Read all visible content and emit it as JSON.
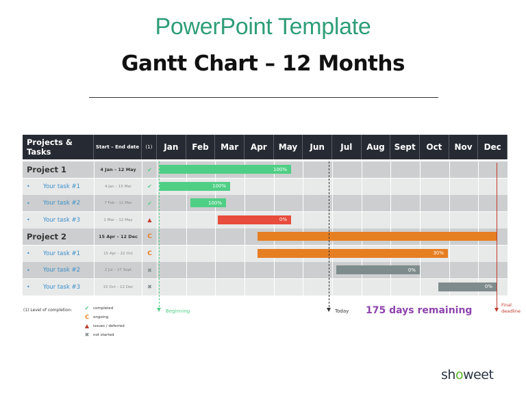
{
  "header": {
    "subtitle": "PowerPoint Template",
    "title": "Gantt Chart – 12 Months"
  },
  "table": {
    "col_task": "Projects & Tasks",
    "col_date": "Start – End date",
    "col_status": "(1)",
    "months": [
      "Jan",
      "Feb",
      "Mar",
      "Apr",
      "May",
      "Jun",
      "Jul",
      "Aug",
      "Sept",
      "Oct",
      "Nov",
      "Dec"
    ],
    "rows": [
      {
        "type": "project",
        "name": "Project 1",
        "dates": "4 Jan – 12 May",
        "status": "completed",
        "status_glyph": "✔",
        "pct": "100%"
      },
      {
        "type": "task",
        "name": "Your task #1",
        "dates": "4 Jan – 15 Mar",
        "status": "completed",
        "status_glyph": "✔",
        "pct": "100%"
      },
      {
        "type": "task",
        "name": "Your task #2",
        "dates": "7 Feb – 11 Mar",
        "status": "completed",
        "status_glyph": "✔",
        "pct": "100%"
      },
      {
        "type": "task",
        "name": "Your task #3",
        "dates": "1 Mar – 12 May",
        "status": "issues / deferred",
        "status_glyph": "▲",
        "pct": "0%"
      },
      {
        "type": "project",
        "name": "Project 2",
        "dates": "15 Apr – 12 Dec",
        "status": "ongoing",
        "status_glyph": "C",
        "pct": ""
      },
      {
        "type": "task",
        "name": "Your task #1",
        "dates": "15 Apr – 22 Oct",
        "status": "ongoing",
        "status_glyph": "C",
        "pct": "30%"
      },
      {
        "type": "task",
        "name": "Your task #2",
        "dates": "2 Jul – 27 Sept",
        "status": "not started",
        "status_glyph": "✖",
        "pct": "0%"
      },
      {
        "type": "task",
        "name": "Your task #3",
        "dates": "15 Oct – 12 Dec",
        "status": "not started",
        "status_glyph": "✖",
        "pct": "0%"
      }
    ],
    "bullet": "•"
  },
  "markers": {
    "beginning": "Beginning",
    "today": "Today",
    "final_line1": "Final",
    "final_line2": "deadline",
    "days_remaining": "175 days remaining"
  },
  "legend": {
    "title": "(1) Level of completion:",
    "items": [
      {
        "glyph": "✔",
        "label": "completed",
        "color": "#4fcf85"
      },
      {
        "glyph": "C",
        "label": "ongoing",
        "color": "#e67e22"
      },
      {
        "glyph": "▲",
        "label": "issues / deferred",
        "color": "#c0392b"
      },
      {
        "glyph": "✖",
        "label": "not started",
        "color": "#7f8c8d"
      }
    ]
  },
  "logo": {
    "pre": "sh",
    "o": "o",
    "post": "weet"
  },
  "colors": {
    "header_bg": "#262a33",
    "completed": "#4fcf85",
    "issues": "#e74c3c",
    "ongoing": "#e67e22",
    "not_started": "#7f8c8d",
    "days_remaining": "#8e44ad",
    "subtitle": "#2e9e78"
  },
  "chart_data": {
    "type": "gantt",
    "title": "Gantt Chart – 12 Months",
    "subtitle": "PowerPoint Template",
    "x_axis": [
      "Jan",
      "Feb",
      "Mar",
      "Apr",
      "May",
      "Jun",
      "Jul",
      "Aug",
      "Sept",
      "Oct",
      "Nov",
      "Dec"
    ],
    "tasks": [
      {
        "name": "Project 1",
        "start": "4 Jan",
        "end": "12 May",
        "completion": 100,
        "status": "completed",
        "color": "#4fcf85"
      },
      {
        "name": "Project 1 / Your task #1",
        "start": "4 Jan",
        "end": "15 Mar",
        "completion": 100,
        "status": "completed",
        "color": "#4fcf85"
      },
      {
        "name": "Project 1 / Your task #2",
        "start": "7 Feb",
        "end": "11 Mar",
        "completion": 100,
        "status": "completed",
        "color": "#4fcf85"
      },
      {
        "name": "Project 1 / Your task #3",
        "start": "1 Mar",
        "end": "12 May",
        "completion": 0,
        "status": "issues / deferred",
        "color": "#e74c3c"
      },
      {
        "name": "Project 2",
        "start": "15 Apr",
        "end": "12 Dec",
        "completion": null,
        "status": "ongoing",
        "color": "#e67e22"
      },
      {
        "name": "Project 2 / Your task #1",
        "start": "15 Apr",
        "end": "22 Oct",
        "completion": 30,
        "status": "ongoing",
        "color": "#e67e22"
      },
      {
        "name": "Project 2 / Your task #2",
        "start": "2 Jul",
        "end": "27 Sept",
        "completion": 0,
        "status": "not started",
        "color": "#7f8c8d"
      },
      {
        "name": "Project 2 / Your task #3",
        "start": "15 Oct",
        "end": "12 Dec",
        "completion": 0,
        "status": "not started",
        "color": "#7f8c8d"
      }
    ],
    "annotations": [
      {
        "label": "Beginning",
        "at": "4 Jan"
      },
      {
        "label": "Today",
        "at": "~ end Jun"
      },
      {
        "label": "Final deadline",
        "at": "12 Dec"
      },
      {
        "label": "175 days remaining"
      }
    ]
  }
}
